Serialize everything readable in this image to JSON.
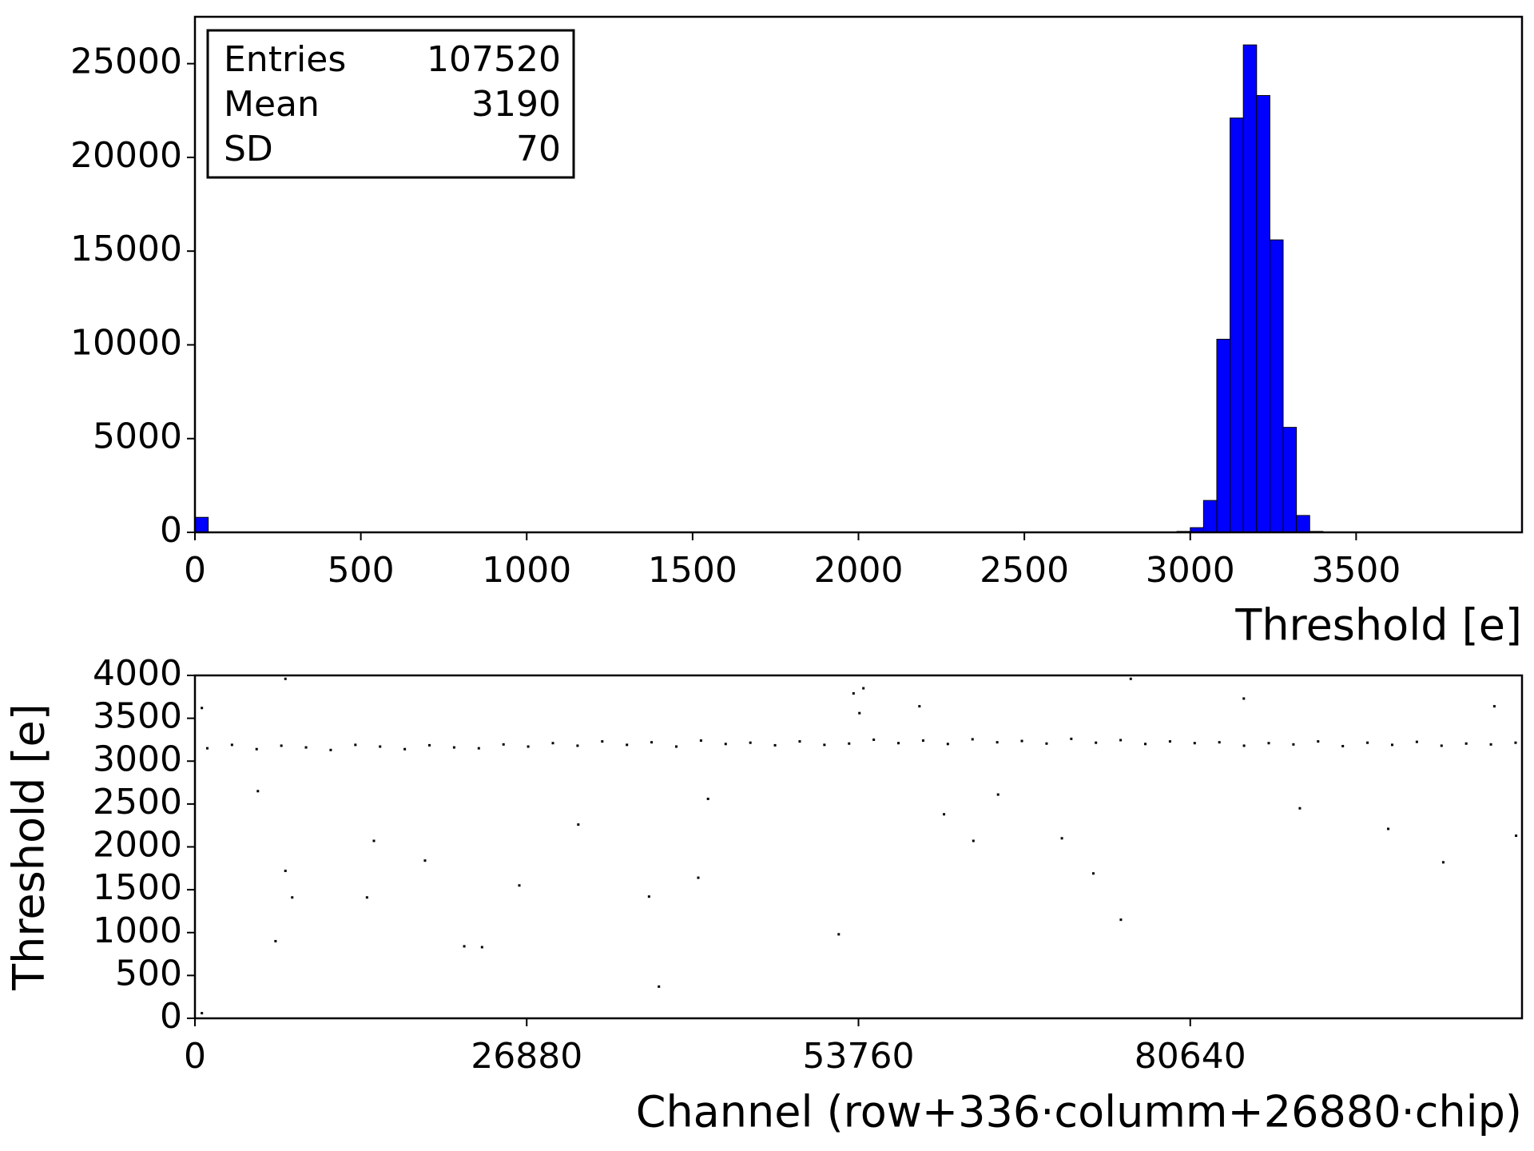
{
  "chart_data": [
    {
      "type": "histogram",
      "xlabel": "Threshold [e]",
      "color": "#0000ff",
      "bins": [
        0,
        40,
        80,
        120,
        160,
        200,
        240,
        280,
        320,
        360,
        400,
        440,
        480,
        520,
        560,
        600,
        640,
        680,
        720,
        760,
        800,
        840,
        880,
        920,
        960,
        1000,
        1040,
        1080,
        1120,
        1160,
        1200,
        1240,
        1280,
        1320,
        1360,
        1400,
        1440,
        1480,
        1520,
        1560,
        1600,
        1640,
        1680,
        1720,
        1760,
        1800,
        1840,
        1880,
        1920,
        1960,
        2000,
        2040,
        2080,
        2120,
        2160,
        2200,
        2240,
        2280,
        2320,
        2360,
        2400,
        2440,
        2480,
        2520,
        2560,
        2600,
        2640,
        2680,
        2720,
        2760,
        2800,
        2840,
        2880,
        2920,
        2960,
        3000,
        3040,
        3080,
        3120,
        3160,
        3200,
        3240,
        3280,
        3320,
        3360,
        3400
      ],
      "values": [
        800,
        0,
        0,
        0,
        0,
        0,
        0,
        0,
        0,
        0,
        0,
        0,
        0,
        0,
        0,
        0,
        0,
        0,
        0,
        0,
        0,
        0,
        0,
        0,
        0,
        0,
        0,
        0,
        0,
        0,
        0,
        0,
        0,
        0,
        0,
        0,
        0,
        0,
        0,
        0,
        0,
        0,
        0,
        0,
        0,
        0,
        0,
        0,
        0,
        0,
        0,
        0,
        0,
        0,
        0,
        0,
        0,
        0,
        0,
        0,
        0,
        0,
        0,
        0,
        0,
        0,
        0,
        0,
        0,
        0,
        0,
        0,
        0,
        0,
        50,
        250,
        1700,
        10300,
        22100,
        26000,
        23300,
        15600,
        5600,
        900,
        50
      ],
      "xlim": [
        0,
        4000
      ],
      "xticks": [
        0,
        500,
        1000,
        1500,
        2000,
        2500,
        3000,
        3500
      ],
      "ylim": [
        0,
        27500
      ],
      "yticks": [
        0,
        5000,
        10000,
        15000,
        20000,
        25000
      ],
      "stats": [
        {
          "label": "Entries",
          "value": 107520
        },
        {
          "label": "Mean",
          "value": 3190
        },
        {
          "label": "SD",
          "value": 70
        }
      ]
    },
    {
      "type": "scatter",
      "xlabel": "Channel (row+336·columm+26880·chip)",
      "ylabel": "Threshold [e]",
      "color": "#000000",
      "x": [
        1000,
        3000,
        5000,
        7000,
        9000,
        11000,
        13000,
        15000,
        17000,
        19000,
        21000,
        23000,
        25000,
        27000,
        29000,
        31000,
        33000,
        35000,
        37000,
        39000,
        41000,
        43000,
        45000,
        47000,
        49000,
        51000,
        53000,
        55000,
        57000,
        59000,
        61000,
        63000,
        65000,
        67000,
        69000,
        71000,
        73000,
        75000,
        77000,
        79000,
        81000,
        83000,
        85000,
        87000,
        89000,
        91000,
        93000,
        95000,
        97000,
        99000,
        101000,
        103000,
        105000,
        107000,
        560,
        560,
        7330,
        5100,
        7330,
        7880,
        6530,
        14500,
        13940,
        18640,
        21820,
        23260,
        26280,
        31060,
        36790,
        37590,
        40780,
        41570,
        52160,
        53360,
        53840,
        54160,
        58700,
        60690,
        63070,
        65070,
        70240,
        72790,
        75020,
        75820,
        84980,
        89520,
        96680,
        101140,
        105280,
        107040
      ],
      "values": [
        3150,
        3190,
        3140,
        3180,
        3160,
        3130,
        3190,
        3170,
        3140,
        3185,
        3160,
        3150,
        3195,
        3170,
        3210,
        3180,
        3230,
        3190,
        3220,
        3170,
        3240,
        3200,
        3215,
        3185,
        3230,
        3190,
        3205,
        3250,
        3210,
        3240,
        3200,
        3255,
        3220,
        3235,
        3205,
        3260,
        3215,
        3245,
        3200,
        3230,
        3210,
        3220,
        3180,
        3210,
        3195,
        3230,
        3175,
        3215,
        3190,
        3225,
        3180,
        3205,
        3195,
        3215,
        3620,
        60,
        3960,
        2650,
        1720,
        1410,
        900,
        2070,
        1410,
        1840,
        840,
        830,
        1550,
        2260,
        1420,
        370,
        1640,
        2560,
        980,
        3790,
        3560,
        3850,
        3640,
        2380,
        2070,
        2610,
        2100,
        1690,
        1150,
        3960,
        3730,
        2450,
        2210,
        1820,
        3640,
        2130
      ],
      "xlim": [
        0,
        107520
      ],
      "xticks": [
        0,
        26880,
        53760,
        80640
      ],
      "ylim": [
        0,
        4000
      ],
      "yticks": [
        0,
        500,
        1000,
        1500,
        2000,
        2500,
        3000,
        3500,
        4000
      ]
    }
  ]
}
